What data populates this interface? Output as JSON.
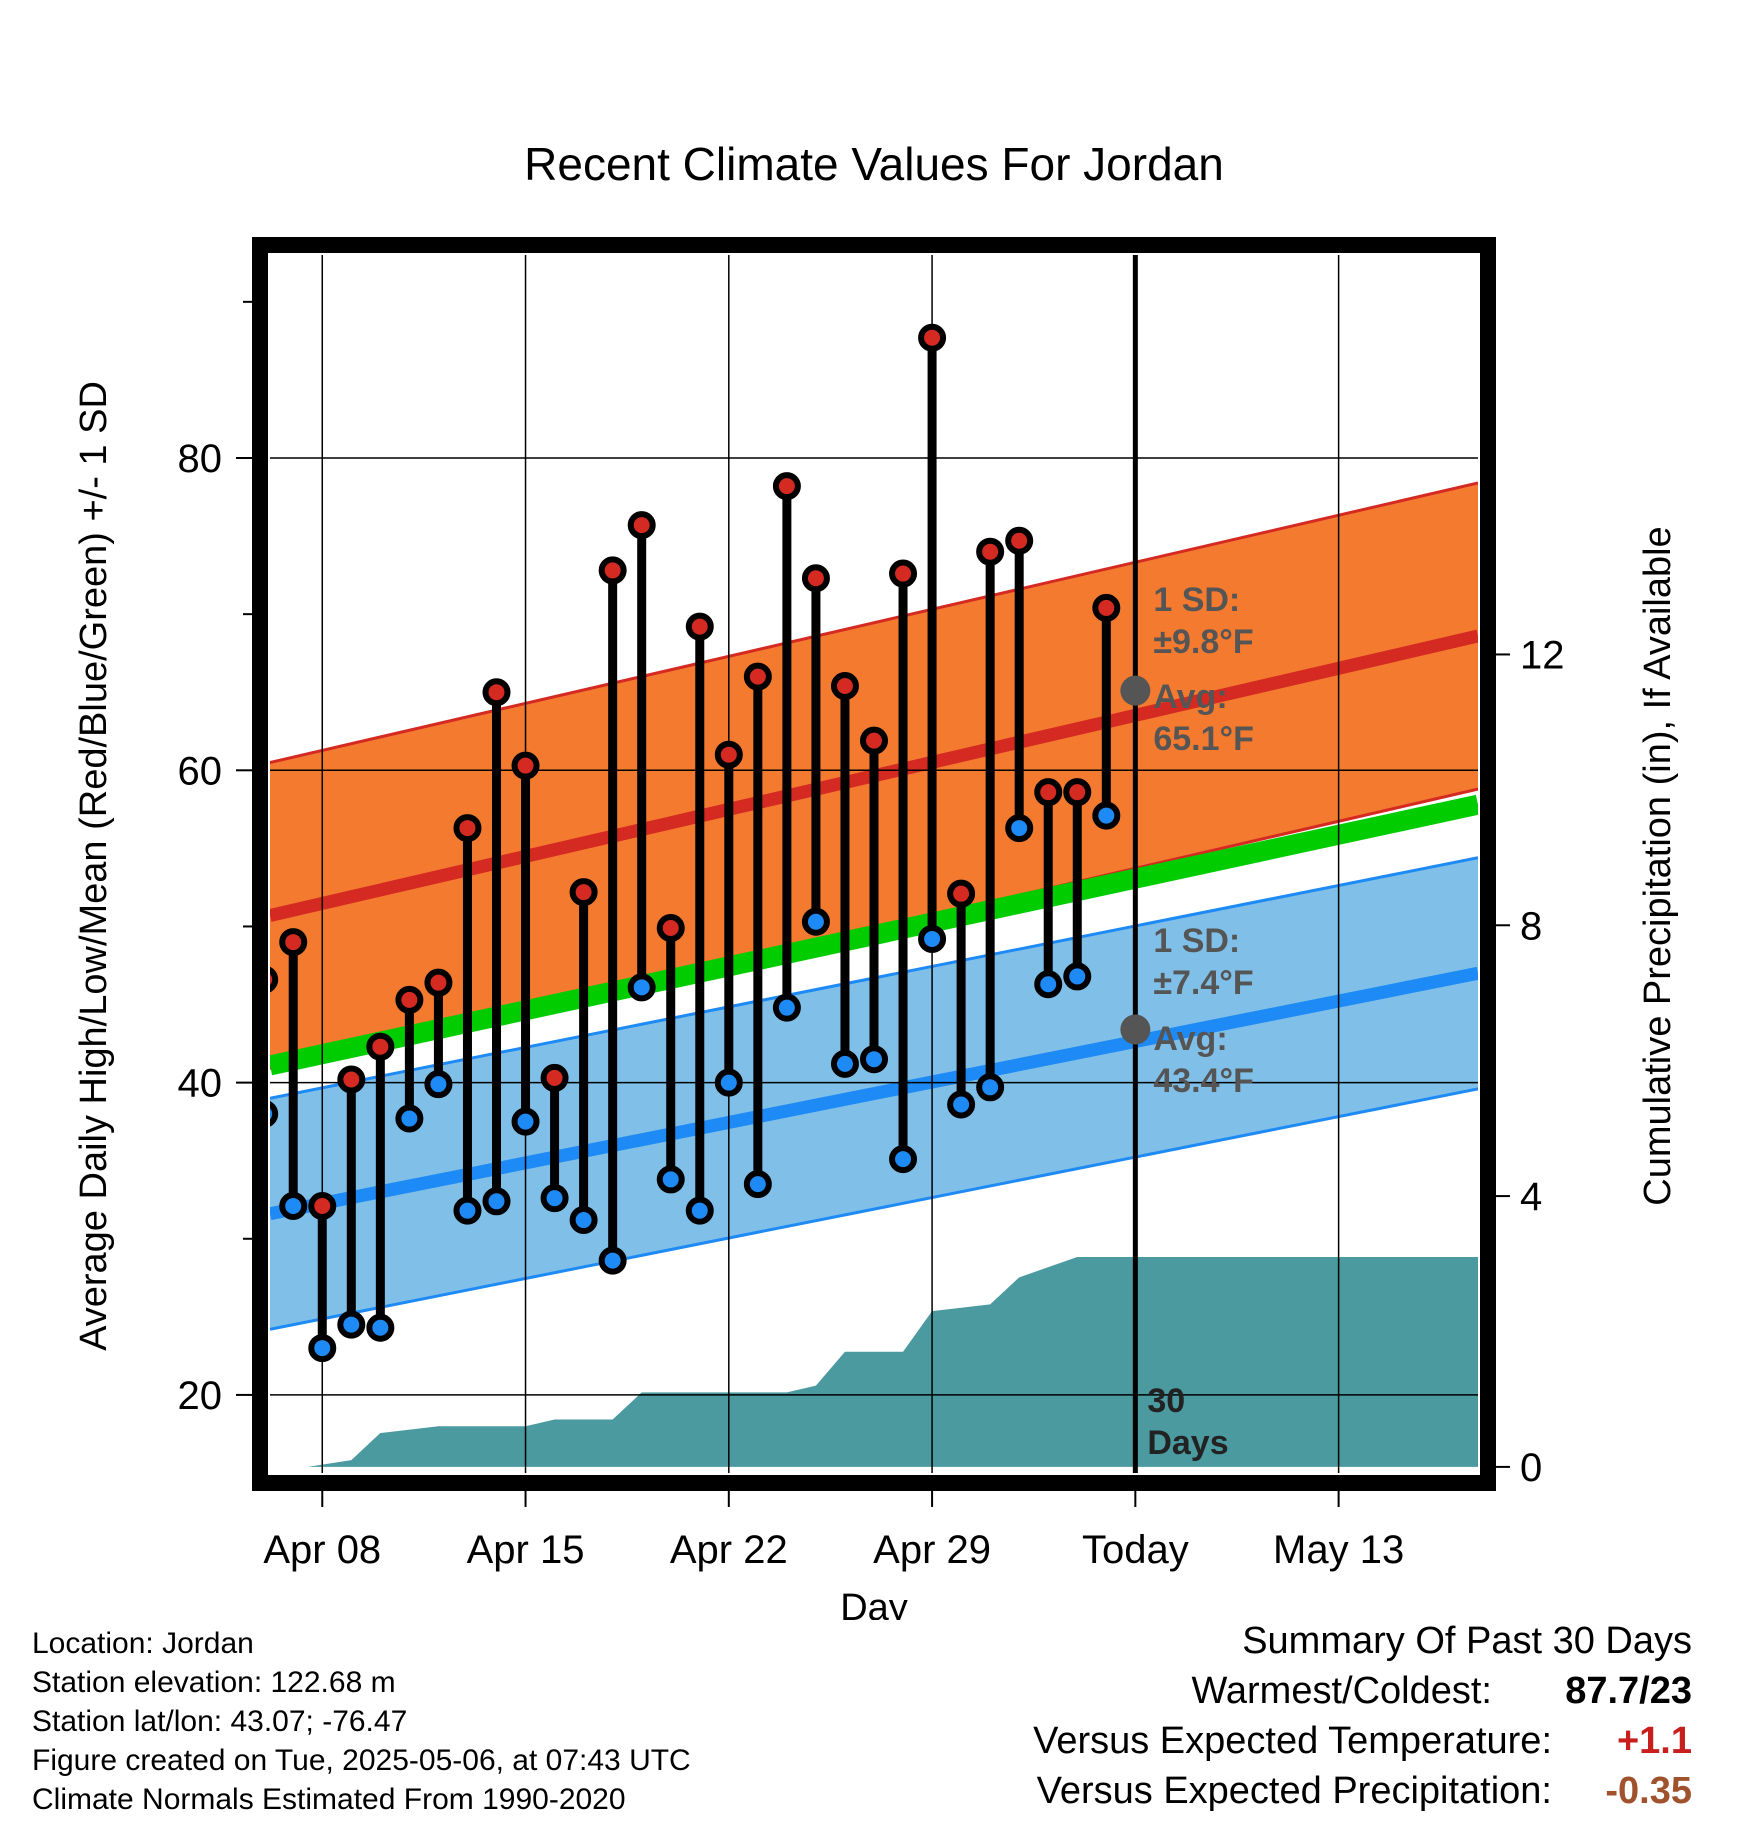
{
  "chart_data": {
    "type": "line",
    "title": "Recent Climate Values For Jordan",
    "xlabel": "Day",
    "ylabel": "Average Daily High/Low/Mean (Red/Blue/Green) +/- 1 SD",
    "y2label": "Cumulative Precipitation (in), If Available",
    "xlim": [
      -1.8,
      39.8
    ],
    "ylim": [
      15,
      93
    ],
    "y2lim": [
      -0.09,
      17.9
    ],
    "x_ticks": [
      {
        "x": 0,
        "label": "Apr 08"
      },
      {
        "x": 7,
        "label": "Apr 15"
      },
      {
        "x": 14,
        "label": "Apr 22"
      },
      {
        "x": 21,
        "label": "Apr 29"
      },
      {
        "x": 28,
        "label": "Today"
      },
      {
        "x": 35,
        "label": "May 13"
      }
    ],
    "y_ticks": [
      20,
      40,
      60,
      80
    ],
    "y2_ticks": [
      0,
      4,
      8,
      12
    ],
    "grid": true,
    "today_x": 28,
    "today_label": "30\nDays",
    "days": [
      -2,
      -1,
      0,
      1,
      2,
      3,
      4,
      5,
      6,
      7,
      8,
      9,
      10,
      11,
      12,
      13,
      14,
      15,
      16,
      17,
      18,
      19,
      20,
      21,
      22,
      23,
      24,
      25,
      26,
      27
    ],
    "highs": [
      46.6,
      49.0,
      32.1,
      40.2,
      42.3,
      45.3,
      46.4,
      56.3,
      65.0,
      60.3,
      40.3,
      52.2,
      72.8,
      75.7,
      49.9,
      69.2,
      61.0,
      66.0,
      78.2,
      72.3,
      65.4,
      61.9,
      72.6,
      87.7,
      52.1,
      74.0,
      74.7,
      58.6,
      58.6,
      70.4
    ],
    "lows": [
      38.0,
      32.1,
      23.0,
      24.5,
      24.3,
      37.7,
      39.9,
      31.8,
      32.4,
      37.5,
      32.6,
      31.2,
      28.6,
      46.1,
      33.8,
      31.8,
      40.0,
      33.5,
      44.8,
      50.3,
      41.2,
      41.5,
      35.1,
      49.2,
      38.6,
      39.7,
      56.3,
      46.3,
      46.8,
      57.1
    ],
    "normal_high": {
      "x": [
        -1.8,
        39.8
      ],
      "avg": [
        50.7,
        68.6
      ],
      "sd": 9.8
    },
    "normal_low": {
      "x": [
        -1.8,
        39.8
      ],
      "avg": [
        31.6,
        47.0
      ],
      "sd": 7.4
    },
    "normal_mean": {
      "x": [
        -1.8,
        39.8
      ],
      "avg": [
        41.1,
        57.8
      ]
    },
    "precip": [
      {
        "x": -2,
        "y": 0.0
      },
      {
        "x": -0.5,
        "y": 0.0
      },
      {
        "x": 1,
        "y": 0.1
      },
      {
        "x": 2,
        "y": 0.5
      },
      {
        "x": 4,
        "y": 0.6
      },
      {
        "x": 6,
        "y": 0.6
      },
      {
        "x": 7,
        "y": 0.6
      },
      {
        "x": 8,
        "y": 0.7
      },
      {
        "x": 10,
        "y": 0.7
      },
      {
        "x": 11,
        "y": 1.1
      },
      {
        "x": 14,
        "y": 1.1
      },
      {
        "x": 16,
        "y": 1.1
      },
      {
        "x": 17,
        "y": 1.2
      },
      {
        "x": 18,
        "y": 1.7
      },
      {
        "x": 20,
        "y": 1.7
      },
      {
        "x": 21,
        "y": 2.3
      },
      {
        "x": 23,
        "y": 2.4
      },
      {
        "x": 24,
        "y": 2.8
      },
      {
        "x": 26,
        "y": 3.1
      },
      {
        "x": 39.8,
        "y": 3.1
      }
    ],
    "annotations": {
      "high_sd_label": "1 SD:",
      "high_sd_value": "±9.8°F",
      "high_avg_label": "Avg:",
      "high_avg_value": "65.1°F",
      "low_sd_label": "1 SD:",
      "low_sd_value": "±7.4°F",
      "low_avg_label": "Avg:",
      "low_avg_value": "43.4°F",
      "today_high_avg": 65.1,
      "today_low_avg": 43.4
    },
    "colors": {
      "high_band": "#f47a30",
      "high_line": "#d42a22",
      "low_band": "#80c0e8",
      "low_line": "#1e8af5",
      "mean_line": "#00cc00",
      "precip": "#4a9aa0",
      "high_dot": "#d42a22",
      "low_dot": "#1e8af5"
    }
  },
  "meta": {
    "location": "Location: Jordan",
    "elevation": "Station elevation: 122.68 m",
    "latlon": "Station lat/lon: 43.07; -76.47",
    "created": "Figure created on Tue, 2025-05-06, at 07:43 UTC",
    "normals": "Climate Normals Estimated From 1990-2020"
  },
  "summary": {
    "title": "Summary Of Past 30 Days",
    "warmest_label": "Warmest/Coldest:",
    "warmest_value": "87.7/23",
    "temp_label": "Versus Expected Temperature:",
    "temp_value": "+1.1",
    "temp_color": "#c81e1e",
    "precip_label": "Versus Expected Precipitation:",
    "precip_value": "-0.35",
    "precip_color": "#a0522d"
  }
}
